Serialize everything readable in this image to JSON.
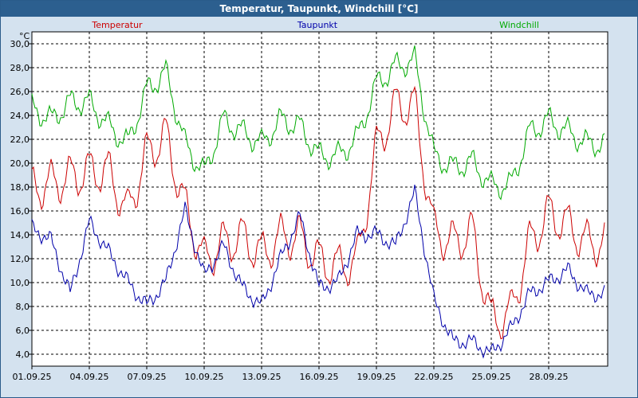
{
  "window": {
    "title": "Temperatur, Taupunkt, Windchill [°C]"
  },
  "chart_data": {
    "type": "line",
    "title": "Temperatur, Taupunkt, Windchill [°C]",
    "ylabel": "°C",
    "ylim": [
      3.0,
      31.0
    ],
    "y_ticks": [
      "4,0",
      "6,0",
      "8,0",
      "10,0",
      "12,0",
      "14,0",
      "16,0",
      "18,0",
      "20,0",
      "22,0",
      "24,0",
      "26,0",
      "28,0",
      "30,0"
    ],
    "x_ticks": [
      "01.09.25",
      "04.09.25",
      "07.09.25",
      "10.09.25",
      "13.09.25",
      "16.09.25",
      "19.09.25",
      "22.09.25",
      "25.09.25",
      "28.09.25"
    ],
    "grid": true,
    "legend_position": "top",
    "x": [
      "01.09.25",
      "02.09.25",
      "03.09.25",
      "04.09.25",
      "05.09.25",
      "06.09.25",
      "07.09.25",
      "08.09.25",
      "09.09.25",
      "10.09.25",
      "11.09.25",
      "12.09.25",
      "13.09.25",
      "14.09.25",
      "15.09.25",
      "16.09.25",
      "17.09.25",
      "18.09.25",
      "19.09.25",
      "20.09.25",
      "21.09.25",
      "22.09.25",
      "23.09.25",
      "24.09.25",
      "25.09.25",
      "26.09.25",
      "27.09.25",
      "28.09.25",
      "29.09.25",
      "30.09.25"
    ],
    "series": [
      {
        "name": "Temperatur",
        "color": "#cc0000",
        "values": [
          19.5,
          20.0,
          20.5,
          21.0,
          21.0,
          17.5,
          22.5,
          24.0,
          18.0,
          13.5,
          15.0,
          15.5,
          14.0,
          15.5,
          15.5,
          13.5,
          13.0,
          13.5,
          23.0,
          26.5,
          26.5,
          16.0,
          15.0,
          16.0,
          8.5,
          9.0,
          15.0,
          17.5,
          16.5,
          15.0
        ]
      },
      {
        "name": "Taupunkt",
        "color": "#0000aa",
        "values": [
          15.0,
          14.0,
          9.5,
          15.5,
          13.0,
          10.5,
          8.5,
          10.5,
          16.5,
          11.0,
          13.5,
          10.0,
          8.5,
          12.5,
          16.0,
          10.0,
          10.5,
          14.5,
          14.5,
          13.5,
          18.0,
          9.0,
          5.5,
          5.5,
          4.5,
          6.5,
          9.5,
          10.5,
          11.5,
          9.5
        ]
      },
      {
        "name": "Windchill",
        "color": "#00aa00",
        "values": [
          25.5,
          24.5,
          26.0,
          26.0,
          24.0,
          22.5,
          27.0,
          28.5,
          22.5,
          20.0,
          24.5,
          23.5,
          22.5,
          24.5,
          24.0,
          21.5,
          21.5,
          23.0,
          27.5,
          29.0,
          29.5,
          21.5,
          20.5,
          21.0,
          19.0,
          19.0,
          23.5,
          24.5,
          23.5,
          22.5
        ]
      }
    ]
  }
}
